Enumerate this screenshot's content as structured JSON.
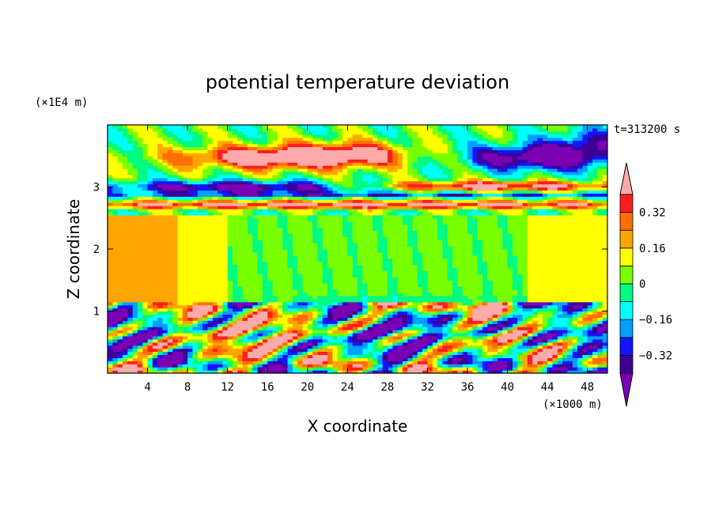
{
  "chart_data": {
    "type": "heatmap",
    "title": "potential temperature deviation",
    "xlabel": "X coordinate",
    "ylabel": "Z coordinate",
    "x_unit": "(×1000 m)",
    "y_unit": "(×1E4 m)",
    "time_label": "t=313200 s",
    "xlim": [
      0,
      50
    ],
    "ylim": [
      0,
      4
    ],
    "x_ticks": [
      4,
      8,
      12,
      16,
      20,
      24,
      28,
      32,
      36,
      40,
      44,
      48
    ],
    "y_ticks": [
      1,
      2,
      3
    ],
    "colorbar": {
      "levels": [
        -0.4,
        -0.32,
        -0.24,
        -0.16,
        -0.08,
        0,
        0.08,
        0.16,
        0.24,
        0.32,
        0.4
      ],
      "tick_labels": [
        "0.32",
        "0.16",
        "0",
        "−0.16",
        "−0.32"
      ],
      "tick_values": [
        0.32,
        0.16,
        0,
        -0.16,
        -0.32
      ],
      "colors": [
        "#7b00b4",
        "#3c0096",
        "#1414ff",
        "#00a0ff",
        "#00ffff",
        "#00fa82",
        "#78ff00",
        "#ffff00",
        "#ffa500",
        "#ff6e00",
        "#ff1e1e",
        "#ffaaaa"
      ]
    }
  }
}
